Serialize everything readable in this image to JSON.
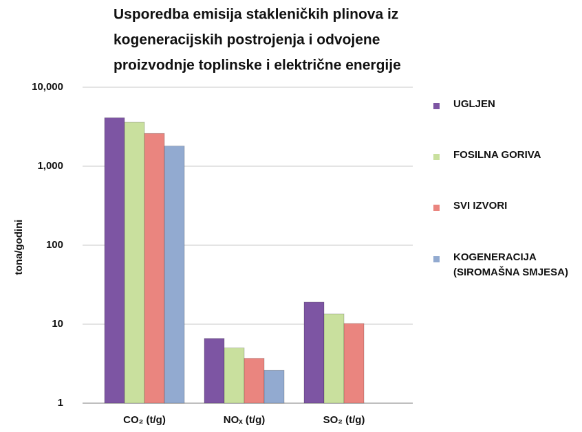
{
  "chart_data": {
    "type": "bar",
    "title": [
      "Usporedba emisija stakleničkih plinova iz",
      "kogeneracijskih postrojenja  i odvojene",
      "proizvodnje toplinske i električne energije"
    ],
    "ylabel": "tona/godini",
    "categories": [
      "CO₂ (t/g)",
      "NOₓ (t/g)",
      "SO₂ (t/g)"
    ],
    "series": [
      {
        "name": "UGLJEN",
        "color": "#7d55a3",
        "values": [
          4100,
          6.6,
          19
        ]
      },
      {
        "name": "FOSILNA GORIVA",
        "color": "#c9e09e",
        "values": [
          3600,
          5,
          13.5
        ]
      },
      {
        "name": "SVI IZVORI",
        "color": "#ea857f",
        "values": [
          2600,
          3.7,
          10.2
        ]
      },
      {
        "name": "KOGENERACIJA (SIROMAŠNA SMJESA)",
        "color": "#92aad0",
        "values": [
          1800,
          2.6,
          null
        ]
      }
    ],
    "log_scale": true,
    "grid": true,
    "ylim": [
      1,
      10000
    ],
    "yticks": [
      1,
      10,
      100,
      {
        "value": 1000,
        "label": "1,000"
      },
      {
        "value": 10000,
        "label": "10,000"
      }
    ]
  }
}
